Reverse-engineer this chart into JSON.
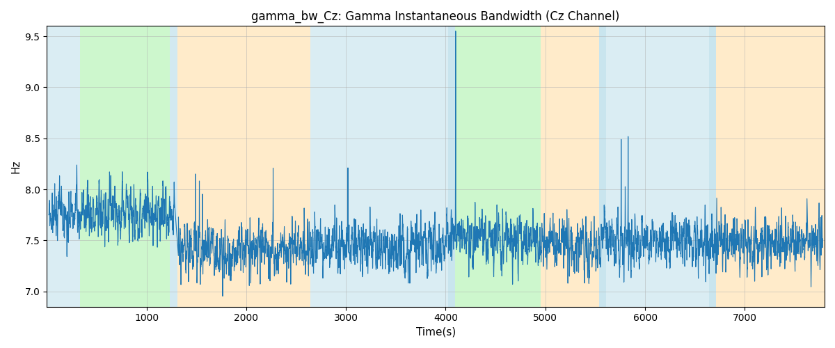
{
  "title": "gamma_bw_Cz: Gamma Instantaneous Bandwidth (Cz Channel)",
  "xlabel": "Time(s)",
  "ylabel": "Hz",
  "ylim": [
    6.85,
    9.6
  ],
  "xlim": [
    0,
    7800
  ],
  "line_color": "#1f77b4",
  "line_width": 0.8,
  "background_regions": [
    {
      "start": 0,
      "end": 330,
      "color": "#add8e6",
      "alpha": 0.45
    },
    {
      "start": 330,
      "end": 1230,
      "color": "#90ee90",
      "alpha": 0.45
    },
    {
      "start": 1230,
      "end": 1310,
      "color": "#add8e6",
      "alpha": 0.55
    },
    {
      "start": 1310,
      "end": 2640,
      "color": "#ffdca0",
      "alpha": 0.55
    },
    {
      "start": 2640,
      "end": 4025,
      "color": "#add8e6",
      "alpha": 0.45
    },
    {
      "start": 4025,
      "end": 4095,
      "color": "#add8e6",
      "alpha": 0.65
    },
    {
      "start": 4095,
      "end": 4950,
      "color": "#90ee90",
      "alpha": 0.45
    },
    {
      "start": 4950,
      "end": 5540,
      "color": "#ffdca0",
      "alpha": 0.55
    },
    {
      "start": 5540,
      "end": 5610,
      "color": "#add8e6",
      "alpha": 0.65
    },
    {
      "start": 5610,
      "end": 6640,
      "color": "#add8e6",
      "alpha": 0.45
    },
    {
      "start": 6640,
      "end": 6710,
      "color": "#add8e6",
      "alpha": 0.65
    },
    {
      "start": 6710,
      "end": 7800,
      "color": "#ffdca0",
      "alpha": 0.55
    }
  ],
  "grid_color": "#b0b0b0",
  "grid_alpha": 0.7,
  "grid_linewidth": 0.5,
  "title_fontsize": 12,
  "label_fontsize": 11,
  "xticks": [
    1000,
    2000,
    3000,
    4000,
    5000,
    6000,
    7000
  ],
  "yticks": [
    7.0,
    7.5,
    8.0,
    8.5,
    9.0,
    9.5
  ],
  "figwidth": 12.0,
  "figheight": 5.0,
  "dpi": 100
}
